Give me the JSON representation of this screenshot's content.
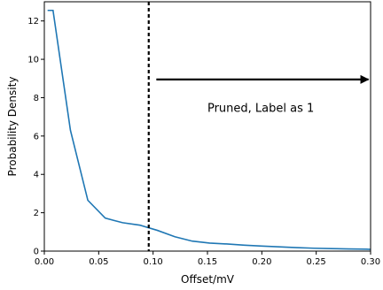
{
  "chart_data": {
    "type": "line",
    "xlabel": "Offset/mV",
    "ylabel": "Probability Density",
    "xlim": [
      0.0,
      0.3
    ],
    "ylim": [
      0,
      13
    ],
    "grid": false,
    "x_ticks": [
      0.0,
      0.05,
      0.1,
      0.15,
      0.2,
      0.25,
      0.3
    ],
    "x_tick_labels": [
      "0.00",
      "0.05",
      "0.10",
      "0.15",
      "0.20",
      "0.25",
      "0.30"
    ],
    "y_ticks": [
      0,
      2,
      4,
      6,
      8,
      10,
      12
    ],
    "y_tick_labels": [
      "0",
      "2",
      "4",
      "6",
      "8",
      "10",
      "12"
    ],
    "series": [
      {
        "color": "#1f77b4",
        "x": [
          0.003,
          0.008,
          0.024,
          0.04,
          0.056,
          0.072,
          0.088,
          0.104,
          0.12,
          0.136,
          0.152,
          0.168,
          0.184,
          0.2,
          0.216,
          0.232,
          0.248,
          0.264,
          0.28,
          0.296,
          0.3
        ],
        "y": [
          12.55,
          12.55,
          6.3,
          2.65,
          1.72,
          1.48,
          1.35,
          1.08,
          0.75,
          0.52,
          0.42,
          0.37,
          0.31,
          0.26,
          0.22,
          0.18,
          0.15,
          0.13,
          0.11,
          0.1,
          0.09
        ]
      }
    ],
    "threshold": {
      "x": 0.096,
      "style": "dashed",
      "color": "#000000"
    },
    "arrow": {
      "x_start": 0.103,
      "x_end": 0.298,
      "y": 8.95,
      "color": "#000000"
    },
    "annotation": {
      "text": "Pruned, Label as 1",
      "x": 0.199,
      "y": 7.25
    }
  }
}
